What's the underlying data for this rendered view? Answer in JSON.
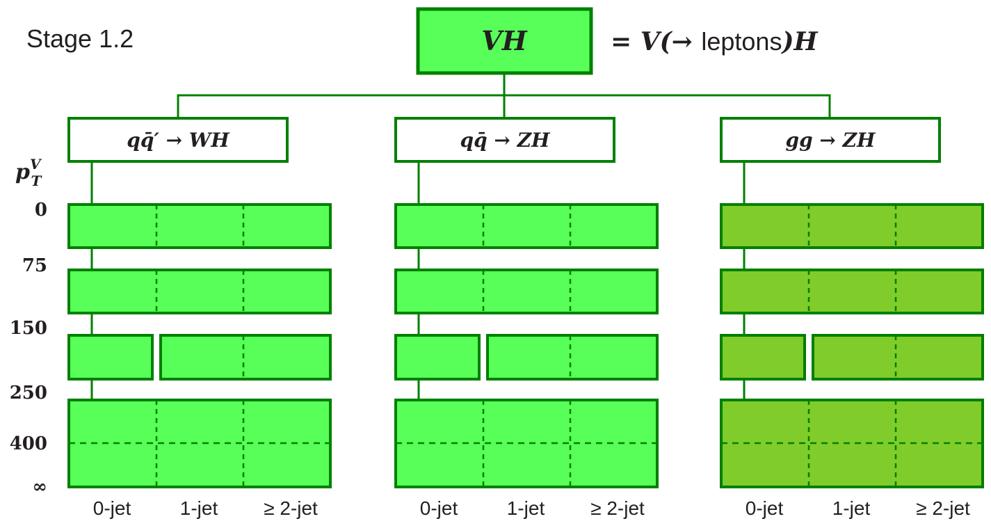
{
  "title": "Stage 1.2",
  "root": {
    "label": "VH",
    "definition_prefix": "= V(→ ",
    "definition_word": "leptons",
    "definition_suffix": ")H"
  },
  "colors": {
    "stroke": "#008000",
    "bright_fill": "#58ff58",
    "dark_fill": "#80cc2a",
    "header_fill": "#ffffff"
  },
  "axis": {
    "label": "p",
    "label_sup": "V",
    "label_sub": "T",
    "ticks": [
      "0",
      "75",
      "150",
      "250",
      "400",
      "∞"
    ]
  },
  "groups": [
    {
      "label": "qq̄′ → WH",
      "fill": "bright",
      "jet_labels": [
        "0-jet",
        "1-jet",
        "≥ 2-jet"
      ]
    },
    {
      "label": "qq̄ → ZH",
      "fill": "bright",
      "jet_labels": [
        "0-jet",
        "1-jet",
        "≥ 2-jet"
      ]
    },
    {
      "label": "gg → ZH",
      "fill": "dark",
      "jet_labels": [
        "0-jet",
        "1-jet",
        "≥ 2-jet"
      ]
    }
  ]
}
